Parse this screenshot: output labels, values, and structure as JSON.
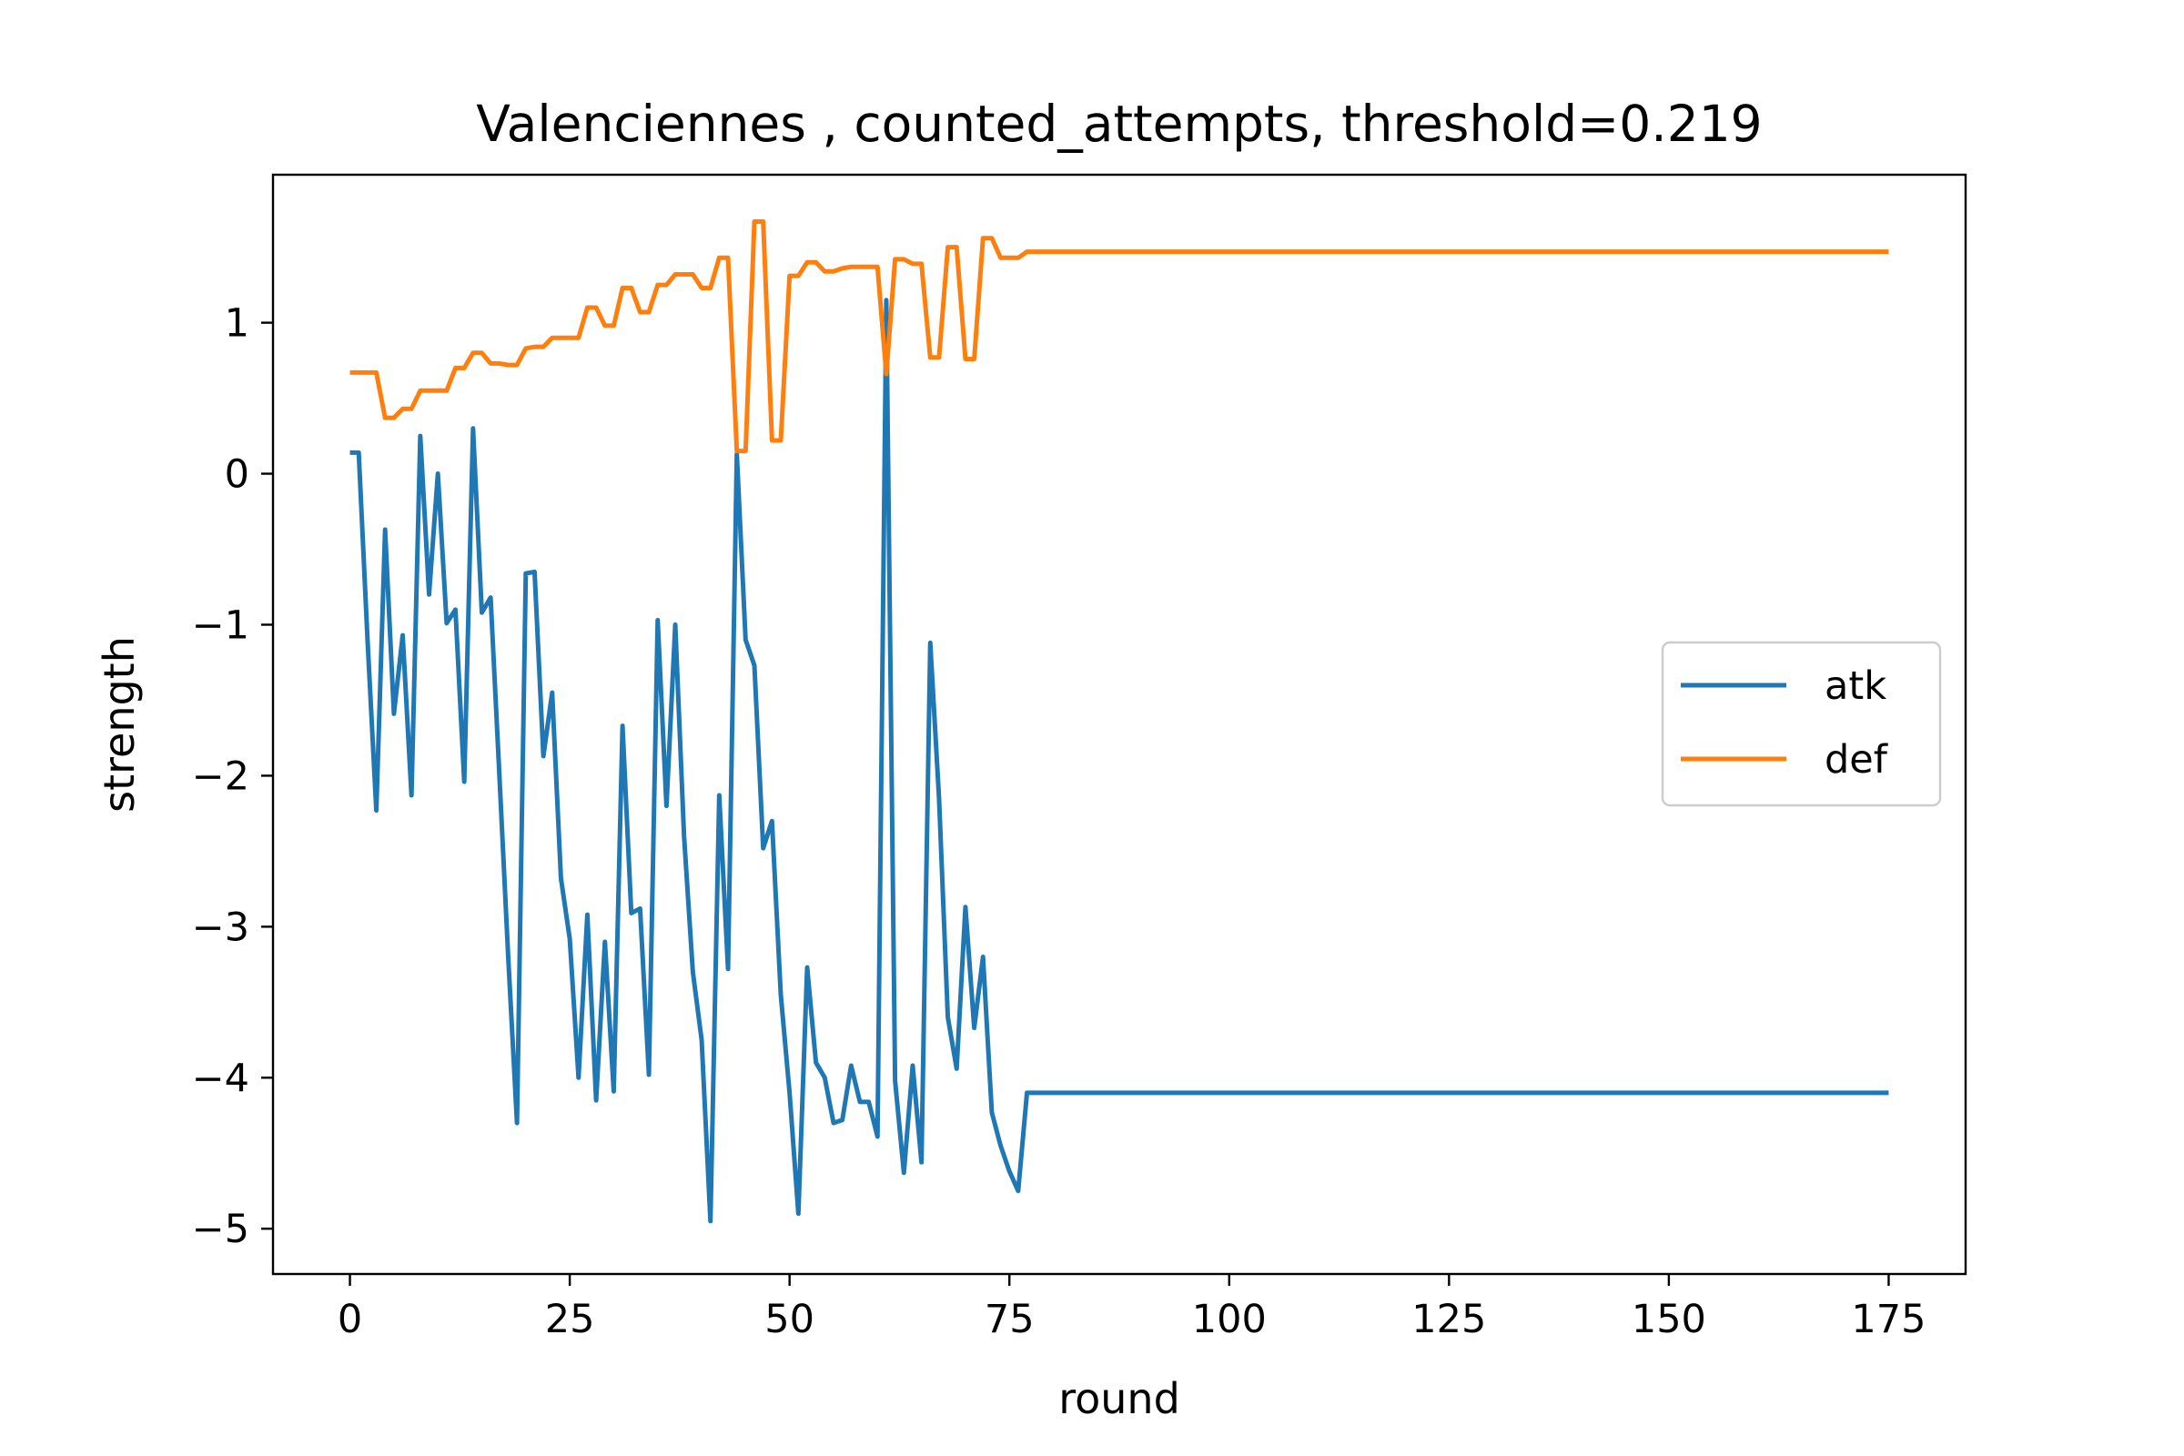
{
  "chart_data": {
    "type": "line",
    "title": "Valenciennes , counted_attempts, threshold=0.219",
    "xlabel": "round",
    "ylabel": "strength",
    "xlim": [
      -8.75,
      183.75
    ],
    "ylim": [
      -5.3,
      1.98
    ],
    "xticks": [
      0,
      25,
      50,
      75,
      100,
      125,
      150,
      175
    ],
    "xtick_labels": [
      "0",
      "25",
      "50",
      "75",
      "100",
      "125",
      "150",
      "175"
    ],
    "yticks": [
      -5,
      -4,
      -3,
      -2,
      -1,
      0,
      1
    ],
    "ytick_labels": [
      "−5",
      "−4",
      "−3",
      "−2",
      "−1",
      "0",
      "1"
    ],
    "grid": false,
    "legend_position": "center-right",
    "series": [
      {
        "name": "atk",
        "color": "#1f77b4",
        "x": [
          0,
          1,
          2,
          3,
          4,
          5,
          6,
          7,
          8,
          9,
          10,
          11,
          12,
          13,
          14,
          15,
          16,
          17,
          18,
          19,
          20,
          21,
          22,
          23,
          24,
          25,
          26,
          27,
          28,
          29,
          30,
          31,
          32,
          33,
          34,
          35,
          36,
          37,
          38,
          39,
          40,
          41,
          42,
          43,
          44,
          45,
          46,
          47,
          48,
          49,
          50,
          51,
          52,
          53,
          54,
          55,
          56,
          57,
          58,
          59,
          60,
          61,
          62,
          63,
          64,
          65,
          66,
          67,
          68,
          69,
          70,
          71,
          72,
          73,
          74,
          75,
          76,
          77,
          175
        ],
        "y": [
          0.14,
          0.14,
          -1.1,
          -2.23,
          -0.37,
          -1.59,
          -1.07,
          -2.13,
          0.25,
          -0.8,
          0.0,
          -0.99,
          -0.9,
          -2.04,
          0.3,
          -0.92,
          -0.82,
          -2.0,
          -3.2,
          -4.3,
          -0.66,
          -0.65,
          -1.87,
          -1.45,
          -2.68,
          -3.08,
          -4.0,
          -2.92,
          -4.15,
          -3.1,
          -4.09,
          -1.67,
          -2.91,
          -2.88,
          -3.98,
          -0.97,
          -2.2,
          -1.0,
          -2.4,
          -3.3,
          -3.75,
          -4.95,
          -2.13,
          -3.28,
          0.13,
          -1.1,
          -1.27,
          -2.48,
          -2.3,
          -3.45,
          -4.1,
          -4.9,
          -3.27,
          -3.9,
          -4.0,
          -4.3,
          -4.28,
          -3.92,
          -4.16,
          -4.16,
          -4.39,
          1.15,
          -4.02,
          -4.63,
          -3.92,
          -4.56,
          -1.12,
          -2.15,
          -3.6,
          -3.94,
          -2.87,
          -3.67,
          -3.2,
          -4.23,
          -4.45,
          -4.62,
          -4.75,
          -4.1,
          -4.1
        ]
      },
      {
        "name": "def",
        "color": "#ff7f0e",
        "x": [
          0,
          1,
          2,
          3,
          4,
          5,
          6,
          7,
          8,
          9,
          10,
          11,
          12,
          13,
          14,
          15,
          16,
          17,
          18,
          19,
          20,
          21,
          22,
          23,
          24,
          25,
          26,
          27,
          28,
          29,
          30,
          31,
          32,
          33,
          34,
          35,
          36,
          37,
          38,
          39,
          40,
          41,
          42,
          43,
          44,
          45,
          46,
          47,
          48,
          49,
          50,
          51,
          52,
          53,
          54,
          55,
          56,
          57,
          58,
          59,
          60,
          61,
          62,
          63,
          64,
          65,
          66,
          67,
          68,
          69,
          70,
          71,
          72,
          73,
          74,
          75,
          76,
          77,
          175
        ],
        "y": [
          0.67,
          0.67,
          0.67,
          0.67,
          0.37,
          0.37,
          0.43,
          0.43,
          0.55,
          0.55,
          0.55,
          0.55,
          0.7,
          0.7,
          0.8,
          0.8,
          0.73,
          0.73,
          0.72,
          0.72,
          0.83,
          0.84,
          0.84,
          0.9,
          0.9,
          0.9,
          0.9,
          1.1,
          1.1,
          0.98,
          0.98,
          1.23,
          1.23,
          1.07,
          1.07,
          1.25,
          1.25,
          1.32,
          1.32,
          1.32,
          1.23,
          1.23,
          1.43,
          1.43,
          0.15,
          0.15,
          1.67,
          1.67,
          0.22,
          0.22,
          1.31,
          1.31,
          1.4,
          1.4,
          1.34,
          1.34,
          1.36,
          1.37,
          1.37,
          1.37,
          1.37,
          0.66,
          1.42,
          1.42,
          1.39,
          1.39,
          0.77,
          0.77,
          1.5,
          1.5,
          0.76,
          0.76,
          1.56,
          1.56,
          1.43,
          1.43,
          1.43,
          1.47,
          1.47
        ]
      }
    ]
  }
}
